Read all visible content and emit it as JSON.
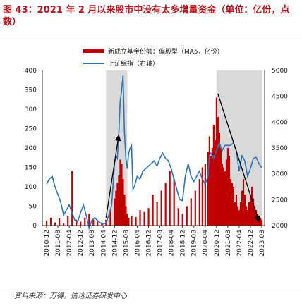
{
  "figure": {
    "title": "图 43：2021 年 2 月以来股市中没有太多增量资金（单位：亿份，点数）",
    "source": "资料来源：万得，信达证券研发中心"
  },
  "chart_data": {
    "type": "bar+line",
    "legend_position": "top",
    "grid": false,
    "x_tick_labels": [
      "2010-12",
      "2011-08",
      "2012-04",
      "2012-12",
      "2013-08",
      "2014-04",
      "2014-12",
      "2015-08",
      "2016-04",
      "2016-12",
      "2017-08",
      "2018-04",
      "2018-12",
      "2019-08",
      "2020-04",
      "2020-12",
      "2021-08",
      "2022-04",
      "2022-12",
      "2023-08"
    ],
    "y_left": {
      "label": "",
      "range": [
        0,
        400
      ],
      "ticks": [
        0,
        50,
        100,
        150,
        200,
        250,
        300,
        350,
        400
      ]
    },
    "y_right": {
      "label": "",
      "range": [
        2000,
        5000
      ],
      "ticks": [
        2000,
        2500,
        3000,
        3500,
        4000,
        4500,
        5000
      ]
    },
    "shaded_periods": [
      {
        "start": "2014-06",
        "end": "2015-09"
      },
      {
        "start": "2020-12",
        "end": "2023-08"
      }
    ],
    "trend_arrows": [
      {
        "axis": "right",
        "from": {
          "x": "2014-06",
          "y": 2150
        },
        "to": {
          "x": "2015-03",
          "y": 3750
        }
      },
      {
        "axis": "left",
        "from": {
          "x": "2021-01",
          "y": 340
        },
        "to": {
          "x": "2023-06",
          "y": 10
        }
      }
    ],
    "series": [
      {
        "name": "新成立基金份额：偏股型（MA5，亿份）",
        "type": "bar",
        "axis": "left",
        "color": "#c00000",
        "x": [
          "2010-12",
          "2011-03",
          "2011-06",
          "2011-09",
          "2011-12",
          "2012-03",
          "2012-06",
          "2012-09",
          "2012-12",
          "2013-03",
          "2013-06",
          "2013-09",
          "2013-12",
          "2014-03",
          "2014-06",
          "2014-09",
          "2014-12",
          "2015-01",
          "2015-02",
          "2015-03",
          "2015-04",
          "2015-05",
          "2015-06",
          "2015-07",
          "2015-08",
          "2015-09",
          "2015-10",
          "2015-12",
          "2016-03",
          "2016-06",
          "2016-09",
          "2016-12",
          "2017-03",
          "2017-06",
          "2017-09",
          "2017-12",
          "2018-03",
          "2018-06",
          "2018-09",
          "2018-12",
          "2019-03",
          "2019-06",
          "2019-09",
          "2019-12",
          "2020-02",
          "2020-04",
          "2020-06",
          "2020-07",
          "2020-08",
          "2020-09",
          "2020-10",
          "2020-11",
          "2020-12",
          "2021-01",
          "2021-02",
          "2021-03",
          "2021-04",
          "2021-05",
          "2021-06",
          "2021-07",
          "2021-08",
          "2021-09",
          "2021-10",
          "2021-11",
          "2021-12",
          "2022-01",
          "2022-02",
          "2022-03",
          "2022-04",
          "2022-05",
          "2022-06",
          "2022-07",
          "2022-08",
          "2022-09",
          "2022-10",
          "2022-11",
          "2022-12",
          "2023-01",
          "2023-02",
          "2023-03",
          "2023-04",
          "2023-05",
          "2023-06",
          "2023-07",
          "2023-08"
        ],
        "values": [
          12,
          20,
          8,
          18,
          6,
          25,
          140,
          15,
          10,
          20,
          30,
          15,
          10,
          8,
          15,
          40,
          70,
          90,
          110,
          130,
          170,
          160,
          120,
          80,
          50,
          30,
          20,
          25,
          22,
          40,
          35,
          45,
          80,
          60,
          90,
          110,
          140,
          120,
          45,
          30,
          50,
          70,
          90,
          120,
          150,
          160,
          190,
          230,
          180,
          200,
          260,
          220,
          330,
          280,
          240,
          200,
          160,
          150,
          140,
          170,
          200,
          180,
          120,
          110,
          100,
          60,
          80,
          50,
          40,
          60,
          90,
          120,
          80,
          50,
          40,
          60,
          80,
          100,
          70,
          50,
          40,
          30,
          25,
          20,
          15
        ]
      },
      {
        "name": "上证综指（右轴）",
        "type": "line",
        "axis": "right",
        "color": "#2e75b6",
        "x": [
          "2010-12",
          "2011-02",
          "2011-04",
          "2011-06",
          "2011-08",
          "2011-10",
          "2011-12",
          "2012-02",
          "2012-04",
          "2012-06",
          "2012-08",
          "2012-10",
          "2012-12",
          "2013-02",
          "2013-04",
          "2013-06",
          "2013-08",
          "2013-10",
          "2013-12",
          "2014-02",
          "2014-04",
          "2014-06",
          "2014-08",
          "2014-10",
          "2014-12",
          "2015-01",
          "2015-02",
          "2015-03",
          "2015-04",
          "2015-05",
          "2015-06",
          "2015-07",
          "2015-08",
          "2015-09",
          "2015-10",
          "2015-11",
          "2015-12",
          "2016-01",
          "2016-02",
          "2016-04",
          "2016-06",
          "2016-08",
          "2016-10",
          "2016-12",
          "2017-02",
          "2017-04",
          "2017-06",
          "2017-08",
          "2017-10",
          "2017-12",
          "2018-02",
          "2018-04",
          "2018-06",
          "2018-08",
          "2018-10",
          "2018-12",
          "2019-02",
          "2019-04",
          "2019-06",
          "2019-08",
          "2019-10",
          "2019-12",
          "2020-02",
          "2020-04",
          "2020-06",
          "2020-07",
          "2020-08",
          "2020-10",
          "2020-12",
          "2021-02",
          "2021-04",
          "2021-06",
          "2021-08",
          "2021-10",
          "2021-12",
          "2022-02",
          "2022-04",
          "2022-06",
          "2022-08",
          "2022-10",
          "2022-12",
          "2023-02",
          "2023-04",
          "2023-06",
          "2023-08"
        ],
        "values": [
          2800,
          2900,
          2950,
          2750,
          2600,
          2450,
          2200,
          2300,
          2400,
          2250,
          2100,
          2070,
          2250,
          2400,
          2200,
          1950,
          2100,
          2150,
          2100,
          2050,
          2030,
          2050,
          2200,
          2400,
          3200,
          3350,
          3300,
          3750,
          4400,
          4600,
          4900,
          3800,
          3300,
          3100,
          3400,
          3500,
          3550,
          2700,
          2750,
          2950,
          2900,
          3050,
          3100,
          3150,
          3200,
          3250,
          3150,
          3300,
          3400,
          3300,
          3250,
          3100,
          2900,
          2700,
          2500,
          2480,
          2950,
          3200,
          2950,
          2850,
          2950,
          3050,
          2900,
          2800,
          2950,
          3350,
          3400,
          3300,
          3450,
          3600,
          3450,
          3550,
          3550,
          3550,
          3600,
          3450,
          3050,
          3350,
          3250,
          2950,
          3100,
          3300,
          3320,
          3200,
          3120
        ]
      }
    ]
  }
}
